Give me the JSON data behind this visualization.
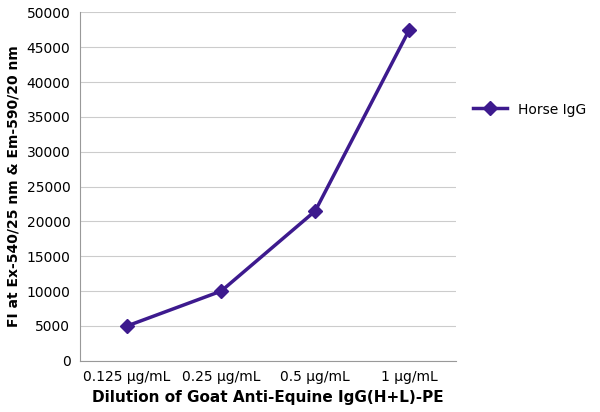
{
  "x_positions": [
    1,
    2,
    3,
    4
  ],
  "y_values": [
    5000,
    10000,
    21500,
    47500
  ],
  "x_tick_labels": [
    "0.125 μg/mL",
    "0.25 μg/mL",
    "0.5 μg/mL",
    "1 μg/mL"
  ],
  "xlabel": "Dilution of Goat Anti-Equine IgG(H+L)-PE",
  "ylabel": "FI at Ex-540/25 nm & Em-590/20 nm",
  "ylim": [
    0,
    50000
  ],
  "yticks": [
    0,
    5000,
    10000,
    15000,
    20000,
    25000,
    30000,
    35000,
    40000,
    45000,
    50000
  ],
  "ytick_labels": [
    "0",
    "5000",
    "10000",
    "15000",
    "20000",
    "25000",
    "30000",
    "35000",
    "40000",
    "45000",
    "50000"
  ],
  "line_color": "#3d1a8e",
  "marker": "D",
  "marker_size": 7,
  "marker_facecolor": "#3d1a8e",
  "line_width": 2.5,
  "legend_label": "Horse IgG",
  "background_color": "#ffffff",
  "grid_color": "#cccccc",
  "label_fontsize": 11,
  "tick_fontsize": 10,
  "legend_fontsize": 10
}
